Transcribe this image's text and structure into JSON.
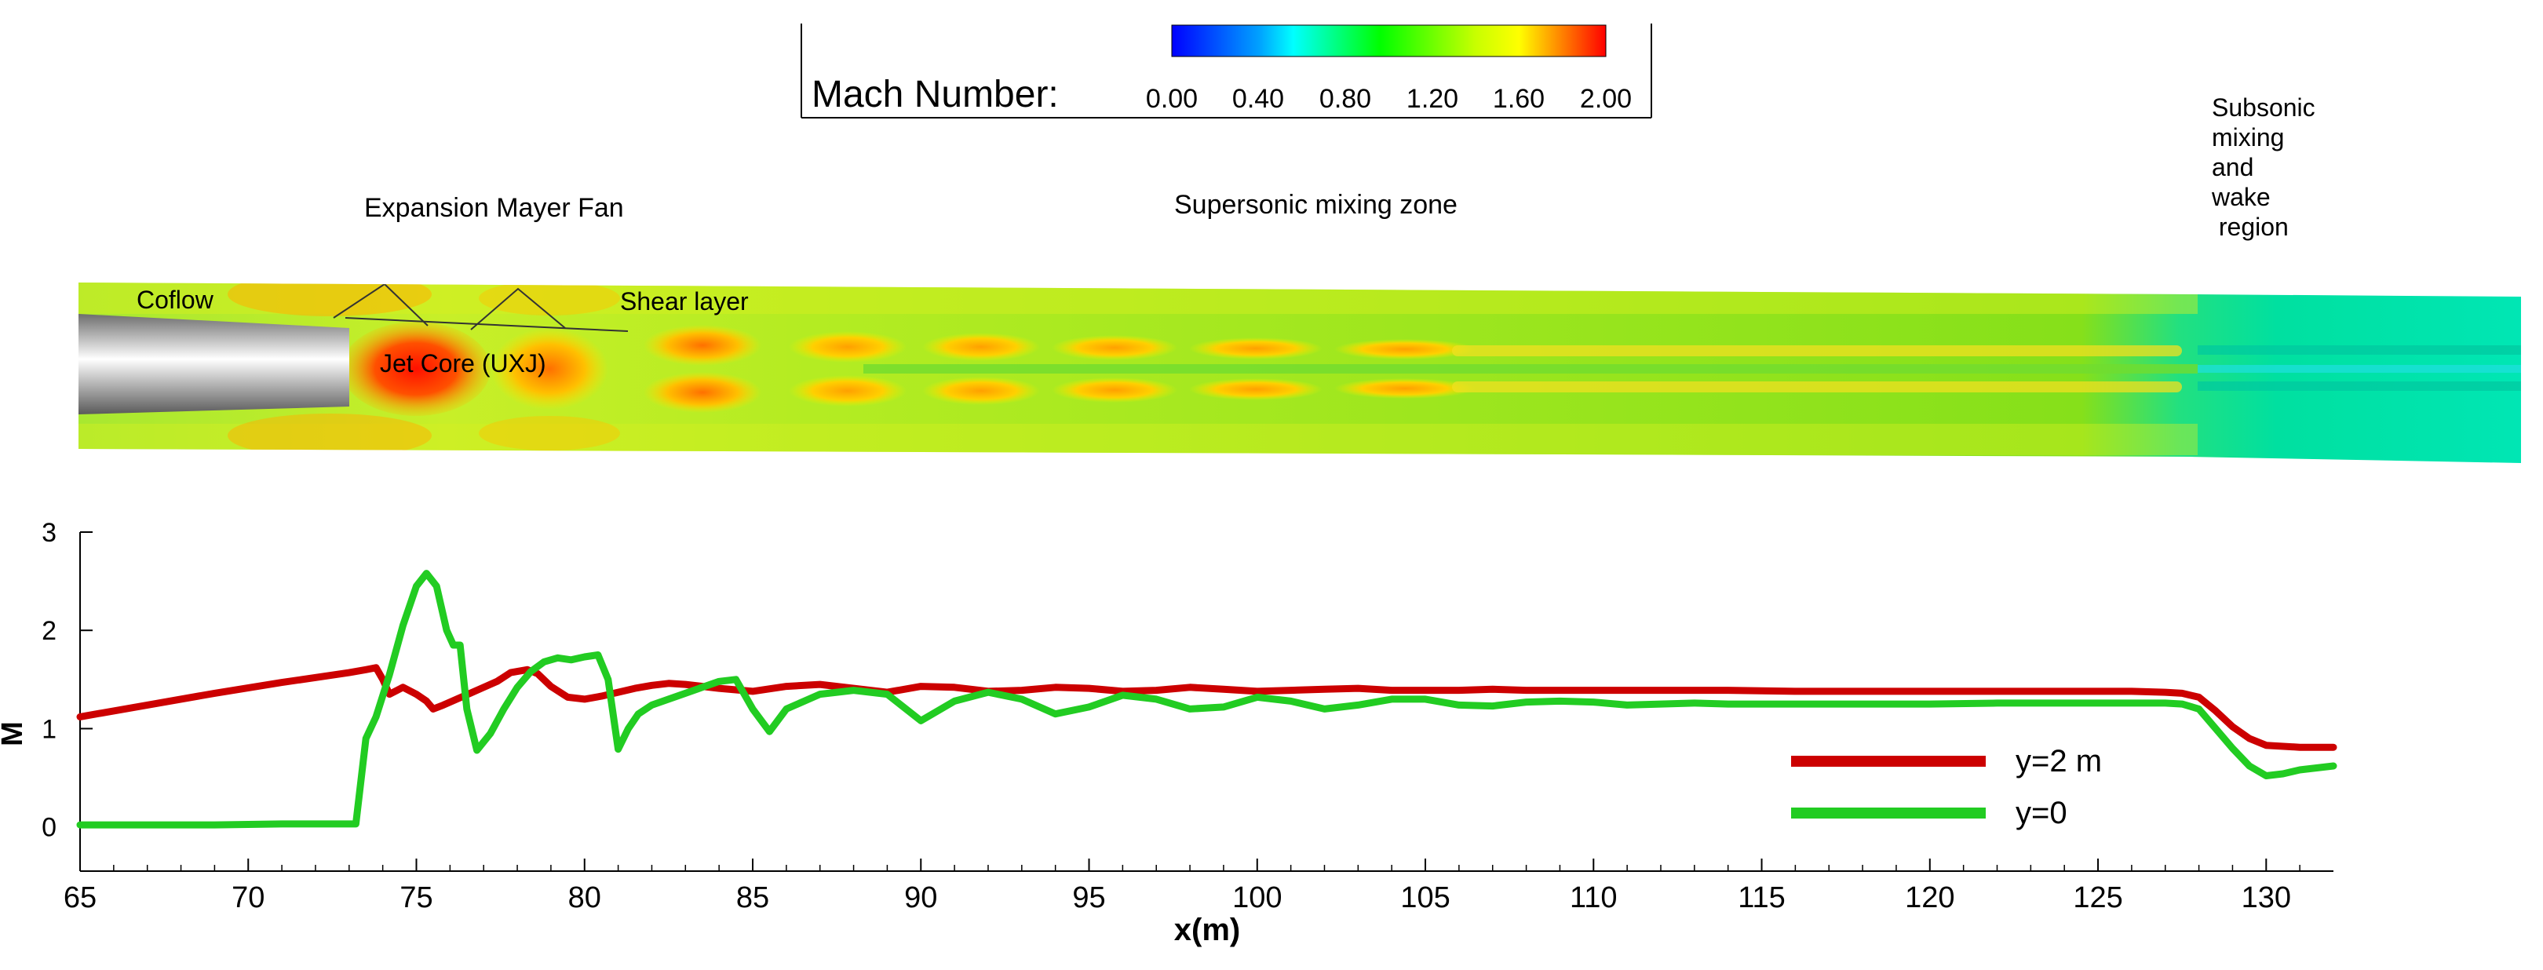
{
  "colorbar": {
    "label": "Mach Number:",
    "ticks": [
      "0.00",
      "0.40",
      "0.80",
      "1.20",
      "1.60",
      "2.00"
    ],
    "colors": [
      "#0000ff",
      "#00a0ff",
      "#00ffff",
      "#00ff00",
      "#ffff00",
      "#ff8000",
      "#ff0000"
    ]
  },
  "annotations": {
    "expansion_fan": "Expansion Mayer Fan",
    "supersonic_zone": "Supersonic mixing zone",
    "subsonic_lines": [
      "Subsonic",
      "mixing",
      "and",
      "wake",
      " region"
    ],
    "coflow": "Coflow",
    "shear_layer": "Shear layer",
    "jet_core": "Jet Core (UXJ)"
  },
  "chart_data": {
    "type": "line",
    "title": "",
    "xlabel": "x(m)",
    "ylabel": "M",
    "xlim": [
      65,
      132
    ],
    "ylim": [
      -0.45,
      3
    ],
    "xticks": [
      65,
      70,
      75,
      80,
      85,
      90,
      95,
      100,
      105,
      110,
      115,
      120,
      125,
      130
    ],
    "yticks": [
      0,
      1,
      2,
      3
    ],
    "legend_position": "bottom-right",
    "series": [
      {
        "name": "y=2 m",
        "color": "#cc0000",
        "x": [
          65,
          67,
          69,
          71,
          73,
          73.5,
          73.8,
          74.0,
          74.2,
          74.6,
          75.0,
          75.3,
          75.5,
          75.8,
          76.2,
          76.6,
          77.0,
          77.4,
          77.8,
          78.3,
          78.6,
          79.0,
          79.5,
          80.0,
          80.5,
          81.0,
          81.5,
          82.0,
          82.5,
          83,
          84,
          85,
          86,
          87,
          88,
          89,
          90,
          91,
          92,
          93,
          94,
          95,
          96,
          97,
          98,
          99,
          100,
          101,
          102,
          103,
          104,
          105,
          106,
          107,
          108,
          109,
          110,
          112,
          114,
          116,
          118,
          120,
          122,
          124,
          126,
          127,
          127.5,
          128,
          128.5,
          129,
          129.5,
          130,
          131,
          132
        ],
        "values": [
          1.12,
          1.24,
          1.36,
          1.47,
          1.57,
          1.6,
          1.62,
          1.5,
          1.35,
          1.42,
          1.35,
          1.28,
          1.2,
          1.24,
          1.3,
          1.36,
          1.42,
          1.48,
          1.57,
          1.6,
          1.56,
          1.43,
          1.32,
          1.3,
          1.33,
          1.37,
          1.41,
          1.44,
          1.46,
          1.45,
          1.41,
          1.38,
          1.43,
          1.45,
          1.41,
          1.37,
          1.43,
          1.42,
          1.38,
          1.39,
          1.42,
          1.41,
          1.38,
          1.39,
          1.42,
          1.4,
          1.38,
          1.39,
          1.4,
          1.41,
          1.39,
          1.39,
          1.39,
          1.4,
          1.39,
          1.39,
          1.39,
          1.39,
          1.39,
          1.38,
          1.38,
          1.38,
          1.38,
          1.38,
          1.38,
          1.37,
          1.36,
          1.32,
          1.18,
          1.02,
          0.9,
          0.83,
          0.81,
          0.81
        ]
      },
      {
        "name": "y=0",
        "color": "#22cc22",
        "x": [
          65,
          67,
          69,
          71,
          72.5,
          73.2,
          73.5,
          73.8,
          74.2,
          74.6,
          75.0,
          75.3,
          75.6,
          75.9,
          76.1,
          76.3,
          76.5,
          76.8,
          77.2,
          77.6,
          78.0,
          78.4,
          78.8,
          79.2,
          79.6,
          80.0,
          80.4,
          80.7,
          81.0,
          81.3,
          81.6,
          82.0,
          82.5,
          83.0,
          83.5,
          84.0,
          84.5,
          85.0,
          85.5,
          86,
          87,
          88,
          89,
          90,
          91,
          92,
          93,
          94,
          95,
          96,
          97,
          98,
          99,
          100,
          101,
          102,
          103,
          104,
          105,
          106,
          107,
          108,
          109,
          110,
          111,
          112,
          113,
          114,
          116,
          118,
          120,
          122,
          124,
          126,
          127,
          127.5,
          128,
          128.5,
          129,
          129.5,
          130,
          130.5,
          131,
          132
        ],
        "values": [
          0.02,
          0.02,
          0.02,
          0.03,
          0.03,
          0.03,
          0.9,
          1.12,
          1.55,
          2.05,
          2.45,
          2.58,
          2.45,
          2.0,
          1.85,
          1.85,
          1.2,
          0.78,
          0.95,
          1.2,
          1.42,
          1.58,
          1.68,
          1.72,
          1.7,
          1.73,
          1.75,
          1.5,
          0.79,
          1.0,
          1.15,
          1.24,
          1.3,
          1.36,
          1.42,
          1.48,
          1.5,
          1.2,
          0.97,
          1.2,
          1.35,
          1.39,
          1.35,
          1.08,
          1.28,
          1.37,
          1.3,
          1.15,
          1.22,
          1.34,
          1.3,
          1.2,
          1.22,
          1.32,
          1.28,
          1.2,
          1.24,
          1.3,
          1.3,
          1.24,
          1.23,
          1.27,
          1.28,
          1.27,
          1.24,
          1.25,
          1.26,
          1.25,
          1.25,
          1.25,
          1.25,
          1.26,
          1.26,
          1.26,
          1.26,
          1.25,
          1.2,
          1.0,
          0.8,
          0.62,
          0.52,
          0.54,
          0.58,
          0.62
        ]
      }
    ]
  }
}
